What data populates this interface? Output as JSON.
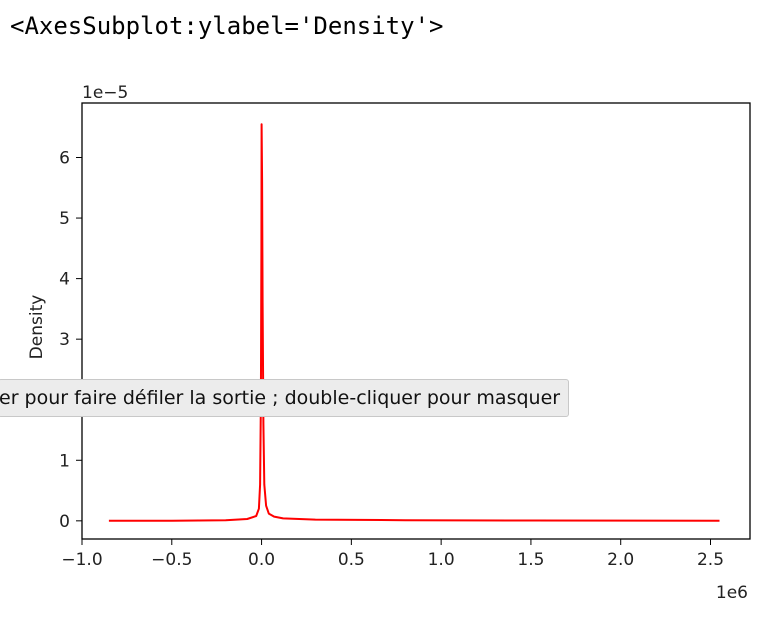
{
  "output_repr": "<AxesSubplot:ylabel='Density'>",
  "tooltip": "er pour faire défiler la sortie ; double-cliquer pour masquer",
  "colors": {
    "line": "#ff0000",
    "axes": "#000000",
    "text": "#222222"
  },
  "chart_data": {
    "type": "line",
    "title": "",
    "xlabel": "",
    "ylabel": "Density",
    "x_offset_text": "1e6",
    "y_offset_text": "1e−5",
    "xlim": [
      -1.0,
      2.72
    ],
    "ylim": [
      -0.3,
      6.9
    ],
    "x_ticks": [
      -1.0,
      -0.5,
      0.0,
      0.5,
      1.0,
      1.5,
      2.0,
      2.5
    ],
    "x_tick_labels": [
      "−1.0",
      "−0.5",
      "0.0",
      "0.5",
      "1.0",
      "1.5",
      "2.0",
      "2.5"
    ],
    "y_ticks": [
      0,
      1,
      2,
      3,
      4,
      5,
      6
    ],
    "y_tick_labels": [
      "0",
      "1",
      "2",
      "3",
      "4",
      "5",
      "6"
    ],
    "grid": false,
    "series": [
      {
        "color": "#ff0000",
        "x": [
          -0.85,
          -0.5,
          -0.2,
          -0.08,
          -0.03,
          -0.015,
          -0.008,
          -0.004,
          -0.001,
          0.0,
          0.003,
          0.006,
          0.01,
          0.015,
          0.025,
          0.04,
          0.07,
          0.12,
          0.3,
          0.8,
          1.5,
          2.55
        ],
        "y": [
          0.0,
          0.0,
          0.01,
          0.03,
          0.08,
          0.2,
          0.6,
          2.0,
          4.5,
          6.55,
          5.6,
          3.6,
          1.6,
          0.6,
          0.25,
          0.12,
          0.07,
          0.04,
          0.02,
          0.01,
          0.005,
          0.0
        ]
      }
    ]
  }
}
